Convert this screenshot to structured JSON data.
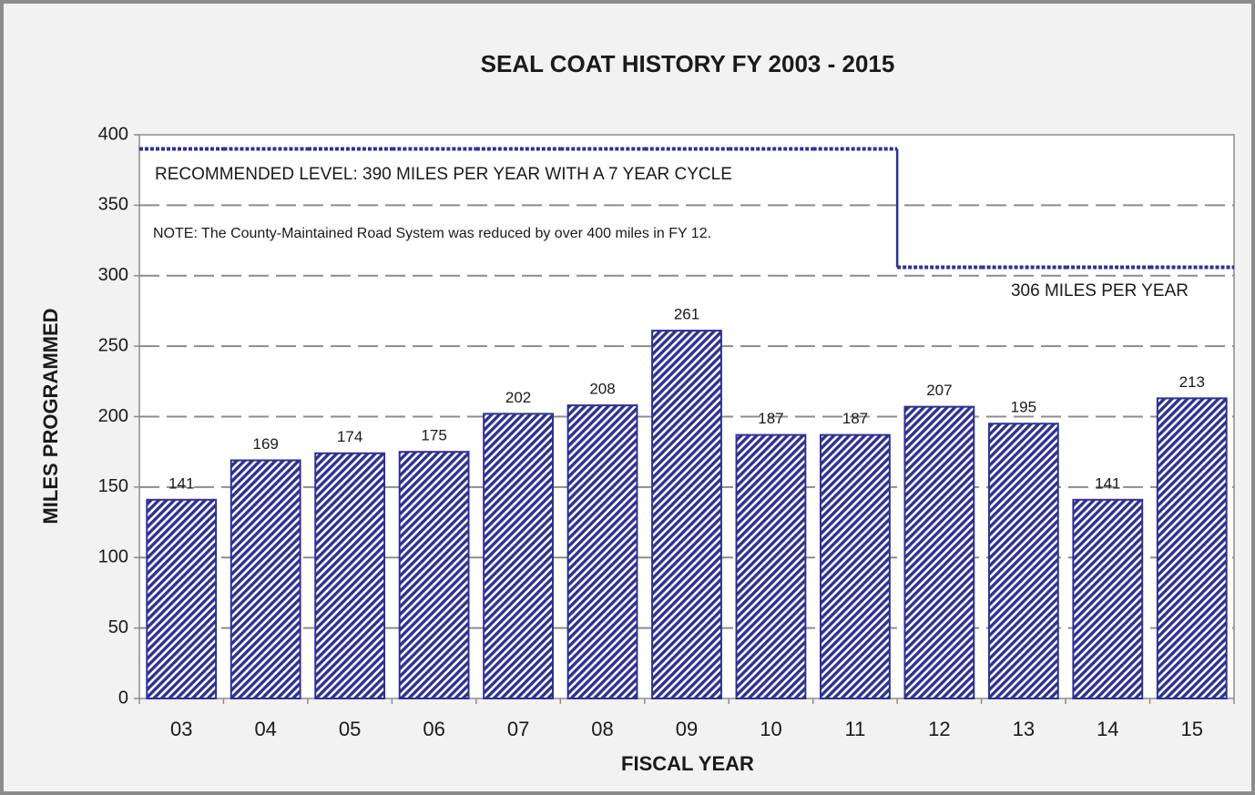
{
  "chart_data": {
    "type": "bar",
    "title": "SEAL COAT HISTORY FY 2003 - 2015",
    "x_label": "FISCAL YEAR",
    "y_label": "MILES PROGRAMMED",
    "categories": [
      "03",
      "04",
      "05",
      "06",
      "07",
      "08",
      "09",
      "10",
      "11",
      "12",
      "13",
      "14",
      "15"
    ],
    "values": [
      141,
      169,
      174,
      175,
      202,
      208,
      261,
      187,
      187,
      207,
      195,
      141,
      213
    ],
    "color": "#2e3192",
    "ylim": [
      0,
      400
    ],
    "yticks": [
      0,
      50,
      100,
      150,
      200,
      250,
      300,
      350,
      400
    ],
    "grid": true,
    "reference_line": {
      "color": "#2e3192",
      "values": [
        390,
        390,
        390,
        390,
        390,
        390,
        390,
        390,
        390,
        306,
        306,
        306,
        306
      ]
    },
    "annotations": [
      "RECOMMENDED LEVEL:  390 MILES PER YEAR WITH A 7 YEAR CYCLE",
      "NOTE: The County-Maintained Road System was reduced by over 400 miles in FY 12.",
      "306 MILES PER YEAR"
    ]
  }
}
